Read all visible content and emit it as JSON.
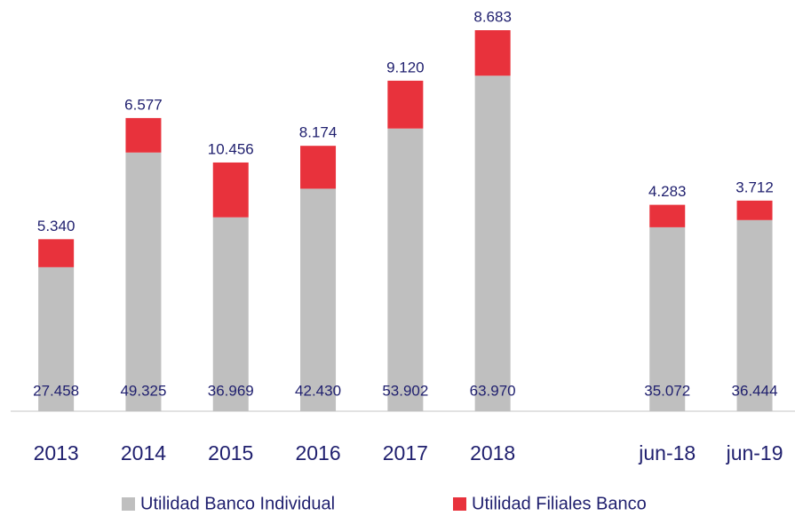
{
  "chart_data": {
    "type": "stacked_bar",
    "categories": [
      "2013",
      "2014",
      "2015",
      "2016",
      "2017",
      "2018",
      null,
      "jun-18",
      "jun-19"
    ],
    "series": [
      {
        "name": "Utilidad Banco Individual",
        "color": "#bfbfbf",
        "values": [
          27458,
          49325,
          36969,
          42430,
          53902,
          63970,
          null,
          35072,
          36444
        ],
        "value_labels": [
          "27.458",
          "49.325",
          "36.969",
          "42.430",
          "53.902",
          "63.970",
          null,
          "35.072",
          "36.444"
        ]
      },
      {
        "name": "Utilidad Filiales Banco",
        "color": "#e8323c",
        "values": [
          5340,
          6577,
          10456,
          8174,
          9120,
          8683,
          null,
          4283,
          3712
        ],
        "value_labels": [
          "5.340",
          "6.577",
          "10.456",
          "8.174",
          "9.120",
          "8.683",
          null,
          "4.283",
          "3.712"
        ]
      }
    ],
    "legend": "bottom"
  }
}
